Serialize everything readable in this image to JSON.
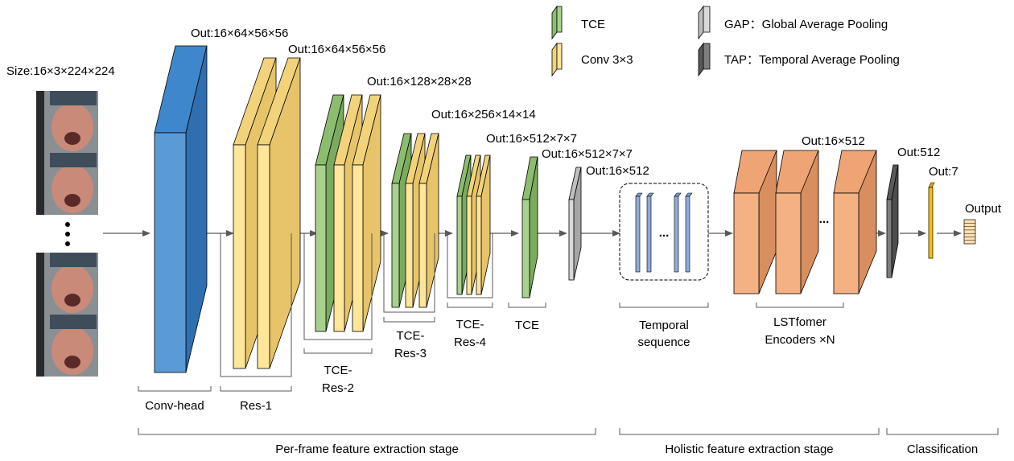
{
  "input": {
    "size_label": "Size:16×3×224×224",
    "ellipsis": "⋮"
  },
  "legend": {
    "tce": "TCE",
    "conv": "Conv 3×3",
    "gap": "GAP：Global Average Pooling",
    "tap": "TAP：Temporal Average  Pooling"
  },
  "colors": {
    "blue": "#5b9bd5",
    "yellow": "#ffe699",
    "green": "#a9d18e",
    "orange": "#f4b183",
    "gray_light": "#d9d9d9",
    "gray_dark": "#7f7f7f",
    "seq_blue": "#8faadc",
    "output_bar": "#ffc000"
  },
  "outputs": {
    "conv_head": "Out:16×64×56×56",
    "res1": "Out:16×64×56×56",
    "res2": "Out:16×128×28×28",
    "res3": "Out:16×256×14×14",
    "res4": "Out:16×512×7×7",
    "tce": "Out:16×512×7×7",
    "gap": "Out:16×512",
    "lstformer": "Out:16×512",
    "tap": "Out:512",
    "fc": "Out:7",
    "final": "Output"
  },
  "blocks": {
    "conv_head": "Conv-head",
    "res1": "Res-1",
    "res2_line1": "TCE-",
    "res2_line2": "Res-2",
    "res3_line1": "TCE-",
    "res3_line2": "Res-3",
    "res4_line1": "TCE-",
    "res4_line2": "Res-4",
    "tce": "TCE",
    "temporal_line1": "Temporal",
    "temporal_line2": "sequence",
    "lst_line1": "LSTfomer",
    "lst_line2": "Encoders ×N",
    "seq_dots": "...",
    "enc_dots": "..."
  },
  "stages": {
    "per_frame": "Per-frame feature extraction stage",
    "holistic": "Holistic feature extraction stage",
    "classification": "Classification"
  }
}
